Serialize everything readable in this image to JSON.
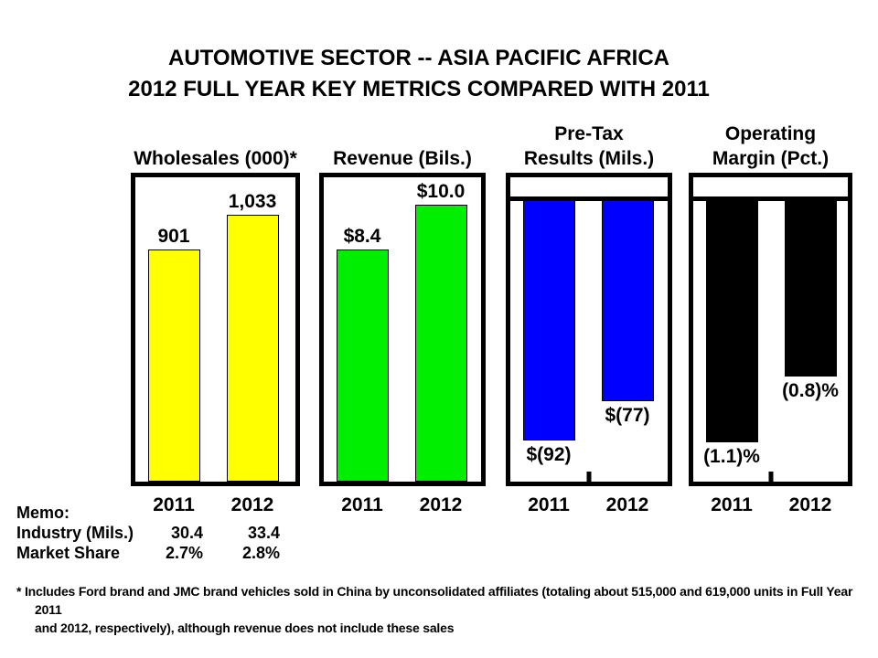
{
  "title": {
    "line1": "AUTOMOTIVE SECTOR -- ASIA PACIFIC AFRICA",
    "line2": "2012 FULL YEAR KEY METRICS COMPARED WITH 2011"
  },
  "chart_data": [
    {
      "type": "bar",
      "title": "Wholesales (000)*",
      "categories": [
        "2011",
        "2012"
      ],
      "values": [
        901,
        1033
      ],
      "value_labels": [
        "901",
        "1,033"
      ],
      "bar_color": "#FFFF00",
      "direction": "up",
      "axis_max": 1180,
      "grid": false,
      "legend": false
    },
    {
      "type": "bar",
      "title": "Revenue (Bils.)",
      "categories": [
        "2011",
        "2012"
      ],
      "values": [
        8.4,
        10.0
      ],
      "value_labels": [
        "$8.4",
        "$10.0"
      ],
      "bar_color": "#00EE00",
      "direction": "up",
      "axis_max": 11,
      "grid": false,
      "legend": false
    },
    {
      "type": "bar",
      "title": "Pre-Tax\nResults (Mils.)",
      "categories": [
        "2011",
        "2012"
      ],
      "values": [
        -92,
        -77
      ],
      "value_labels": [
        "$(92)",
        "$(77)"
      ],
      "bar_color": "#0000FF",
      "direction": "down",
      "axis_max": 108,
      "grid": false,
      "legend": false
    },
    {
      "type": "bar",
      "title": "Operating\nMargin (Pct.)",
      "categories": [
        "2011",
        "2012"
      ],
      "values": [
        -1.1,
        -0.8
      ],
      "value_labels": [
        "(1.1)%",
        "(0.8)%"
      ],
      "bar_color": "#000000",
      "direction": "down",
      "axis_max": 1.28,
      "grid": false,
      "legend": false
    }
  ],
  "memo": {
    "heading": "Memo:",
    "rows": [
      {
        "label": "Industry (Mils.)",
        "y2011": "30.4",
        "y2012": "33.4"
      },
      {
        "label": "Market Share",
        "y2011": "2.7%",
        "y2012": "2.8%"
      }
    ]
  },
  "footnote": "*  Includes Ford brand and JMC brand vehicles sold in China by unconsolidated affiliates (totaling about 515,000 and 619,000 units in Full Year 2011\nand 2012, respectively), although revenue does not include these sales"
}
